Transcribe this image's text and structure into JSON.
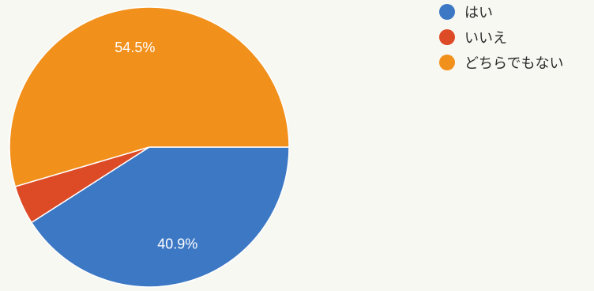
{
  "chart_data": {
    "type": "pie",
    "categories": [
      "はい",
      "いいえ",
      "どちらでもない"
    ],
    "values": [
      40.9,
      4.5,
      54.5
    ],
    "unit": "%",
    "data_labels": [
      "40.9%",
      "",
      "54.5%"
    ],
    "colors": [
      "#3d78c4",
      "#dd4a26",
      "#f2901c"
    ],
    "legend": {
      "position": "top-right",
      "entries": [
        "はい",
        "いいえ",
        "どちらでもない"
      ]
    },
    "start_angle_deg": 0,
    "direction": "clockwise"
  }
}
